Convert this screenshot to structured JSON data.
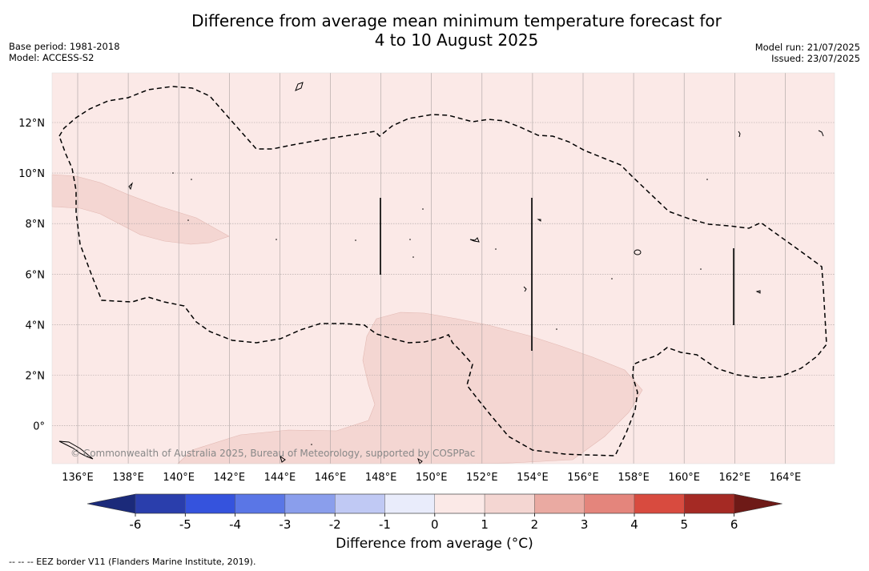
{
  "header": {
    "title_line1": "Difference from average mean minimum temperature forecast for",
    "title_line2": "4 to 10 August 2025",
    "base_period": "Base period: 1981-2018",
    "model": "Model: ACCESS-S2",
    "model_run": "Model run: 21/07/2025",
    "issued": "Issued: 23/07/2025"
  },
  "map": {
    "lon_ticks": [
      "136°E",
      "138°E",
      "140°E",
      "142°E",
      "144°E",
      "146°E",
      "148°E",
      "150°E",
      "152°E",
      "154°E",
      "156°E",
      "158°E",
      "160°E",
      "162°E",
      "164°E"
    ],
    "lat_ticks": [
      "12°N",
      "10°N",
      "8°N",
      "6°N",
      "4°N",
      "2°N",
      "0°"
    ],
    "attribution": "© Commonwealth of Australia 2025, Bureau of Meteorology, supported by COSPPac",
    "background_color": "#fbe9e7",
    "anomaly_patch_color": "#f4d6d2"
  },
  "colorbar": {
    "labels": [
      "-6",
      "-5",
      "-4",
      "-3",
      "-2",
      "-1",
      "0",
      "1",
      "2",
      "3",
      "4",
      "5",
      "6"
    ],
    "colors": [
      "#1b2a7a",
      "#2a3eac",
      "#3553dd",
      "#5a76e6",
      "#8a9eec",
      "#c0c9f4",
      "#e9ecfb",
      "#fbe9e7",
      "#f4d6d2",
      "#eaaaa2",
      "#e4857c",
      "#d84b3f",
      "#a52a24",
      "#6e1a17"
    ],
    "title": "Difference from average (°C)"
  },
  "footnote": "--  --  -- EEZ border V11 (Flanders Marine Institute, 2019)."
}
